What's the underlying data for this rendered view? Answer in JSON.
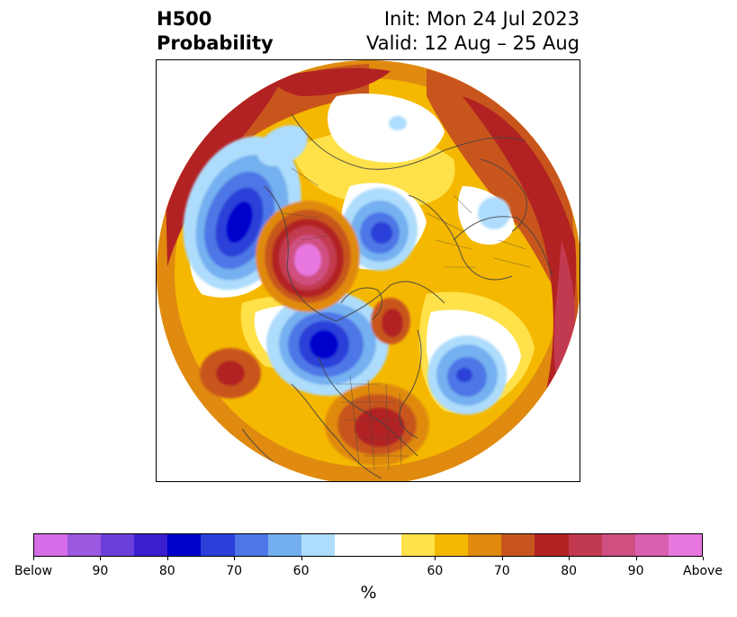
{
  "title": {
    "left_line1": "H500",
    "left_line2": "Probability",
    "right_line1": "Init: Mon 24 Jul 2023",
    "right_line2": "Valid: 12 Aug – 25 Aug"
  },
  "colorbar": {
    "colors": [
      "#d56de8",
      "#9b58e0",
      "#6a3fd9",
      "#3a1fcf",
      "#0000cc",
      "#2a3fd8",
      "#4d76e6",
      "#74b0f0",
      "#aedcfc",
      "#ffffff",
      "#ffe14a",
      "#f5b800",
      "#e08a10",
      "#c8561c",
      "#b22222",
      "#c23a50",
      "#cf4f80",
      "#da5fb0",
      "#e878e0"
    ],
    "tick_labels": [
      "Below",
      "90",
      "80",
      "70",
      "60",
      "60",
      "70",
      "80",
      "90",
      "Above"
    ],
    "label": "%"
  },
  "map": {
    "projection": "north-polar-stereographic",
    "field": "500 hPa height anomaly probability",
    "features": [
      "coastlines",
      "country-borders",
      "us-state-borders"
    ]
  }
}
